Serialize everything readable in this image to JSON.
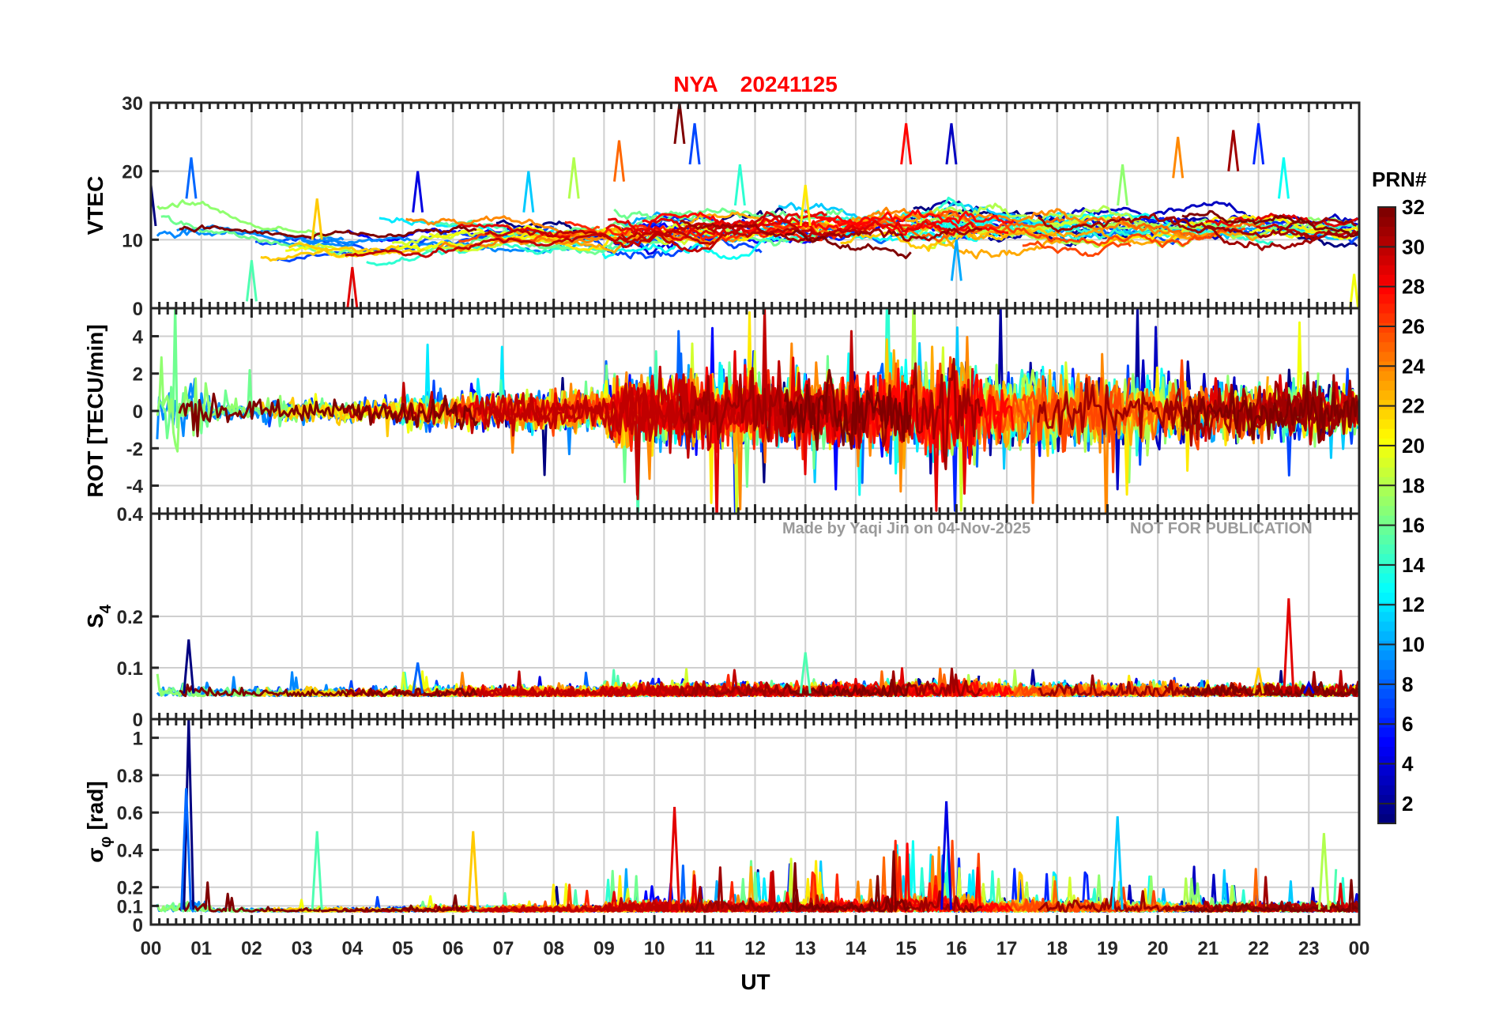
{
  "chart_data": {
    "type": "line",
    "title": {
      "station": "NYA",
      "date": "20241125"
    },
    "xlabel": "UT",
    "x_ticks": [
      "00",
      "01",
      "02",
      "03",
      "04",
      "05",
      "06",
      "07",
      "08",
      "09",
      "10",
      "11",
      "12",
      "13",
      "14",
      "15",
      "16",
      "17",
      "18",
      "19",
      "20",
      "21",
      "22",
      "23",
      "00"
    ],
    "xlim": [
      0,
      24
    ],
    "panels": [
      {
        "id": "vtec",
        "ylabel": "VTEC",
        "ylim": [
          0,
          30
        ],
        "yticks": [
          "0",
          "10",
          "20",
          "30"
        ],
        "ytick_values": [
          0,
          10,
          20,
          30
        ],
        "description": "VTEC per satellite (TECU), roughly 5-28, mostly 8-16"
      },
      {
        "id": "rot",
        "ylabel": "ROT [TECU/min]",
        "ylim": [
          -5.5,
          5.5
        ],
        "yticks": [
          "-4",
          "-2",
          "0",
          "2",
          "4"
        ],
        "ytick_values": [
          -4,
          -2,
          0,
          2,
          4
        ],
        "description": "Rate of TEC change, strongest 10-18 UT"
      },
      {
        "id": "s4",
        "ylabel": "S",
        "ylabel_sub": "4",
        "ylim": [
          0,
          0.4
        ],
        "yticks": [
          "0",
          "0.1",
          "0.2",
          "0.4"
        ],
        "ytick_values": [
          0,
          0.1,
          0.2,
          0.4
        ],
        "description": "Amplitude scintillation index, mostly 0.03-0.1, peak ~0.23 near 22.6 UT"
      },
      {
        "id": "sigphi",
        "ylabel": "σ",
        "ylabel_sub": "φ",
        "ylabel_tail": " [rad]",
        "ylim": [
          0,
          1.1
        ],
        "yticks": [
          "0",
          "0.1",
          "0.2",
          "0.4",
          "0.6",
          "0.8",
          "1"
        ],
        "ytick_values": [
          0,
          0.1,
          0.2,
          0.4,
          0.6,
          0.8,
          1
        ],
        "description": "Phase scintillation index, spikes ~1.1 near 0.75 UT, ~0.65 near 15.8 UT"
      }
    ],
    "colorbar": {
      "label": "PRN#",
      "ticks": [
        "2",
        "4",
        "6",
        "8",
        "10",
        "12",
        "14",
        "16",
        "18",
        "20",
        "22",
        "24",
        "26",
        "28",
        "30",
        "32"
      ],
      "range": [
        1,
        32
      ],
      "colormap": "jet"
    },
    "series_note": "One line per GPS PRN 1-32, colored by PRN on jet colormap",
    "key_points": {
      "vtec": [
        [
          0.0,
          18
        ],
        [
          0.8,
          22
        ],
        [
          2.0,
          7
        ],
        [
          3.3,
          16
        ],
        [
          4.0,
          6
        ],
        [
          5.3,
          20
        ],
        [
          7.5,
          20
        ],
        [
          8.4,
          22
        ],
        [
          9.3,
          24.5
        ],
        [
          10.5,
          30
        ],
        [
          10.8,
          27
        ],
        [
          11.7,
          21
        ],
        [
          13.0,
          18
        ],
        [
          15.0,
          27
        ],
        [
          15.9,
          27
        ],
        [
          16.0,
          10
        ],
        [
          19.3,
          21
        ],
        [
          20.4,
          25
        ],
        [
          21.5,
          26
        ],
        [
          22.0,
          27
        ],
        [
          22.5,
          22
        ],
        [
          23.9,
          5
        ]
      ],
      "s4": [
        [
          0.75,
          0.155
        ],
        [
          5.3,
          0.11
        ],
        [
          13.0,
          0.13
        ],
        [
          22.0,
          0.1
        ],
        [
          22.6,
          0.235
        ],
        [
          23.0,
          0.07
        ]
      ],
      "sigphi": [
        [
          0.75,
          1.1
        ],
        [
          0.7,
          0.73
        ],
        [
          3.3,
          0.5
        ],
        [
          6.4,
          0.5
        ],
        [
          10.4,
          0.63
        ],
        [
          15.8,
          0.66
        ],
        [
          19.2,
          0.58
        ],
        [
          23.3,
          0.49
        ]
      ]
    }
  },
  "watermark": {
    "author": "Made by Yaqi Jin on 04-Nov-2025",
    "notice": "NOT FOR PUBLICATION"
  },
  "colors": {
    "title": "#ff0000",
    "grid": "#cfcfcf",
    "axis": "#262626",
    "watermark": "#9a9a9a"
  }
}
